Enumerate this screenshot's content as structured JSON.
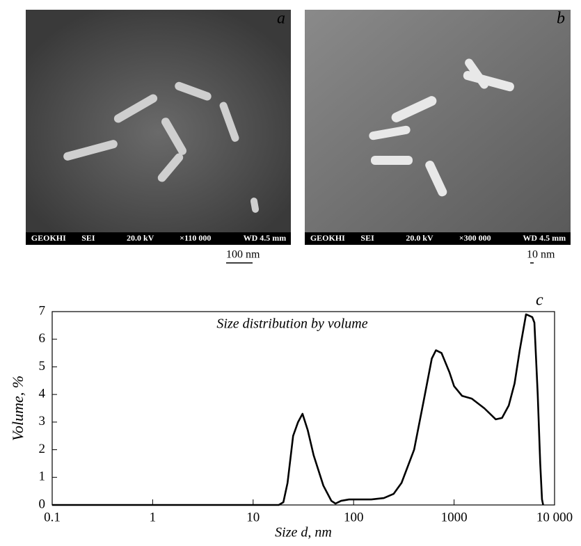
{
  "images": [
    {
      "label": "a",
      "bar": [
        "GEOKHI",
        "SEI",
        "20.0 kV",
        "×110 000",
        "WD 4.5 mm"
      ],
      "scale": "100 nm"
    },
    {
      "label": "b",
      "bar": [
        "GEOKHI",
        "SEI",
        "20.0 kV",
        "×300 000",
        "WD 4.5 mm"
      ],
      "scale": "10 nm"
    }
  ],
  "chart_data": {
    "type": "line",
    "label": "c",
    "title": "Size distribution by volume",
    "x_label": "Size d, nm",
    "y_label": "Volume, %",
    "log_x": true,
    "color": "#000000",
    "xlim": [
      0.1,
      10000
    ],
    "xticks": [
      0.1,
      1,
      10,
      100,
      1000,
      {
        "value": 10000,
        "label": "10 000"
      }
    ],
    "ylim": [
      0,
      7
    ],
    "yticks": [
      0,
      1,
      2,
      3,
      4,
      5,
      6,
      7
    ],
    "x": [
      0.1,
      18,
      20,
      22,
      25,
      28,
      31,
      35,
      40,
      50,
      60,
      66,
      75,
      90,
      150,
      200,
      250,
      300,
      400,
      500,
      600,
      660,
      750,
      900,
      1000,
      1200,
      1500,
      2000,
      2600,
      3000,
      3500,
      4000,
      4500,
      5200,
      5600,
      6000,
      6300,
      6800,
      7200,
      7500,
      7700
    ],
    "values": [
      0,
      0,
      0.1,
      0.8,
      2.5,
      3.0,
      3.3,
      2.7,
      1.8,
      0.7,
      0.15,
      0.05,
      0.15,
      0.2,
      0.2,
      0.25,
      0.4,
      0.8,
      2.0,
      3.8,
      5.3,
      5.6,
      5.5,
      4.8,
      4.3,
      3.95,
      3.85,
      3.5,
      3.1,
      3.15,
      3.6,
      4.4,
      5.6,
      6.9,
      6.85,
      6.8,
      6.6,
      4.0,
      1.5,
      0.2,
      0
    ]
  }
}
